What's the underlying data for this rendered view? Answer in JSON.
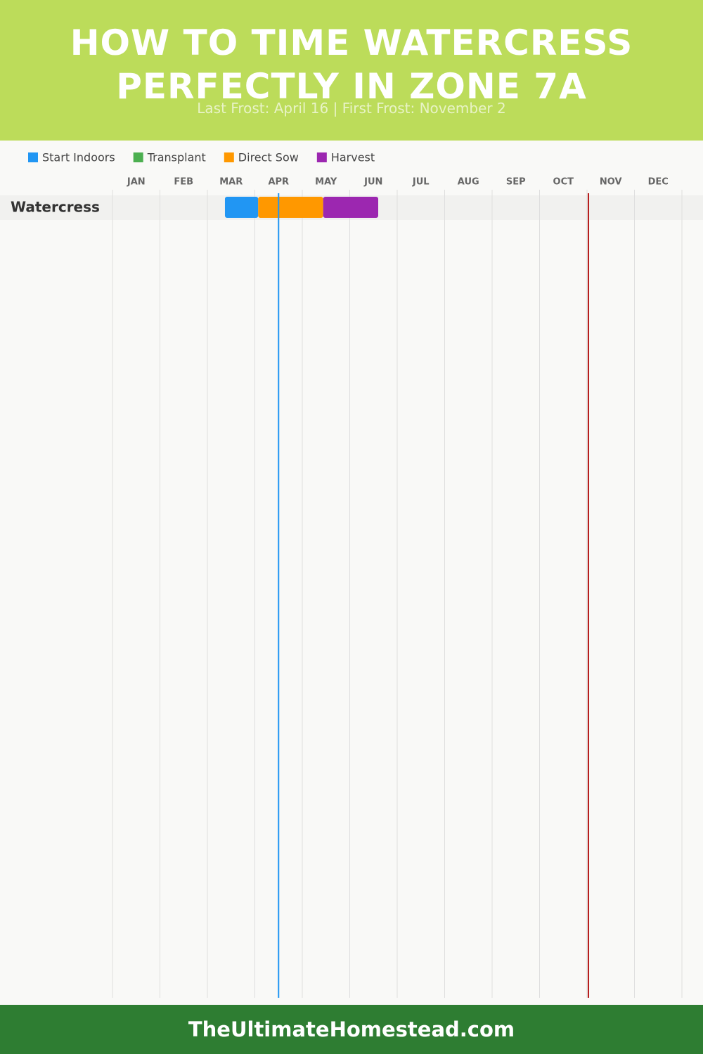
{
  "header": {
    "title": "HOW TO TIME WATERCRESS PERFECTLY IN ZONE 7A",
    "subtitle": "Last Frost: April 16 | First Frost: November 2"
  },
  "chart_data": {
    "type": "gantt",
    "xlim": [
      0,
      12
    ],
    "categories": [
      "JAN",
      "FEB",
      "MAR",
      "APR",
      "MAY",
      "JUN",
      "JUL",
      "AUG",
      "SEP",
      "OCT",
      "NOV",
      "DEC"
    ],
    "rows": [
      "Watercress"
    ],
    "series": [
      {
        "name": "Start Indoors",
        "color": "#2196f3",
        "start": [
          2.37
        ],
        "end": [
          3.07
        ]
      },
      {
        "name": "Transplant",
        "color": "#4caf50",
        "start": [
          null
        ],
        "end": [
          null
        ]
      },
      {
        "name": "Direct Sow",
        "color": "#ff9800",
        "start": [
          3.07
        ],
        "end": [
          4.44
        ]
      },
      {
        "name": "Harvest",
        "color": "#9c27b0",
        "start": [
          4.44
        ],
        "end": [
          5.6
        ]
      }
    ],
    "markers": [
      {
        "value": 3.5,
        "color": "#2196f3"
      },
      {
        "value": 10.03,
        "color": "#b71c1c"
      }
    ]
  },
  "footer": {
    "text": "TheUltimateHomestead.com"
  }
}
